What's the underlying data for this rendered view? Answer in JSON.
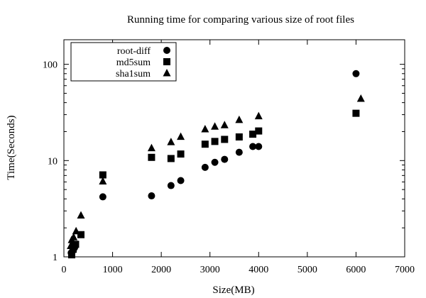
{
  "chart_data": {
    "type": "scatter",
    "title": "Running time for comparing various size of root files",
    "xlabel": "Size(MB)",
    "ylabel": "Time(Seconds)",
    "xlim": [
      0,
      7000
    ],
    "ylim": [
      1,
      180
    ],
    "yscale": "log",
    "grid": false,
    "legend_position": "top-left",
    "x_ticks": [
      0,
      1000,
      2000,
      3000,
      4000,
      5000,
      6000,
      7000
    ],
    "y_ticks": [
      1,
      10,
      100
    ],
    "series": [
      {
        "name": "root-diff",
        "marker": "circle",
        "color": "#000000",
        "points": [
          {
            "x": 150,
            "y": 1.1
          },
          {
            "x": 180,
            "y": 1.15
          },
          {
            "x": 200,
            "y": 1.2
          },
          {
            "x": 220,
            "y": 1.25
          },
          {
            "x": 800,
            "y": 4.2
          },
          {
            "x": 1800,
            "y": 4.3
          },
          {
            "x": 2200,
            "y": 5.5
          },
          {
            "x": 2400,
            "y": 6.2
          },
          {
            "x": 2900,
            "y": 8.5
          },
          {
            "x": 3100,
            "y": 9.6
          },
          {
            "x": 3300,
            "y": 10.3
          },
          {
            "x": 3600,
            "y": 12.2
          },
          {
            "x": 3880,
            "y": 14.0
          },
          {
            "x": 4000,
            "y": 14.0
          },
          {
            "x": 6000,
            "y": 80
          }
        ]
      },
      {
        "name": "md5sum",
        "marker": "square",
        "color": "#000000",
        "points": [
          {
            "x": 160,
            "y": 1.05
          },
          {
            "x": 190,
            "y": 1.2
          },
          {
            "x": 210,
            "y": 1.3
          },
          {
            "x": 240,
            "y": 1.35
          },
          {
            "x": 350,
            "y": 1.7
          },
          {
            "x": 800,
            "y": 7.1
          },
          {
            "x": 1800,
            "y": 10.8
          },
          {
            "x": 2200,
            "y": 10.5
          },
          {
            "x": 2400,
            "y": 11.7
          },
          {
            "x": 2900,
            "y": 14.8
          },
          {
            "x": 3100,
            "y": 15.8
          },
          {
            "x": 3300,
            "y": 16.6
          },
          {
            "x": 3600,
            "y": 17.6
          },
          {
            "x": 3880,
            "y": 18.8
          },
          {
            "x": 4000,
            "y": 20.3
          },
          {
            "x": 6000,
            "y": 31
          }
        ]
      },
      {
        "name": "sha1sum",
        "marker": "triangle",
        "color": "#000000",
        "points": [
          {
            "x": 140,
            "y": 1.3
          },
          {
            "x": 160,
            "y": 1.5
          },
          {
            "x": 200,
            "y": 1.6
          },
          {
            "x": 250,
            "y": 1.85
          },
          {
            "x": 350,
            "y": 2.7
          },
          {
            "x": 800,
            "y": 6.1
          },
          {
            "x": 1800,
            "y": 13.5
          },
          {
            "x": 2200,
            "y": 15.6
          },
          {
            "x": 2400,
            "y": 17.7
          },
          {
            "x": 2900,
            "y": 21.2
          },
          {
            "x": 3100,
            "y": 22.6
          },
          {
            "x": 3300,
            "y": 23.4
          },
          {
            "x": 3600,
            "y": 26.5
          },
          {
            "x": 4000,
            "y": 29
          },
          {
            "x": 6100,
            "y": 44
          }
        ]
      }
    ]
  }
}
